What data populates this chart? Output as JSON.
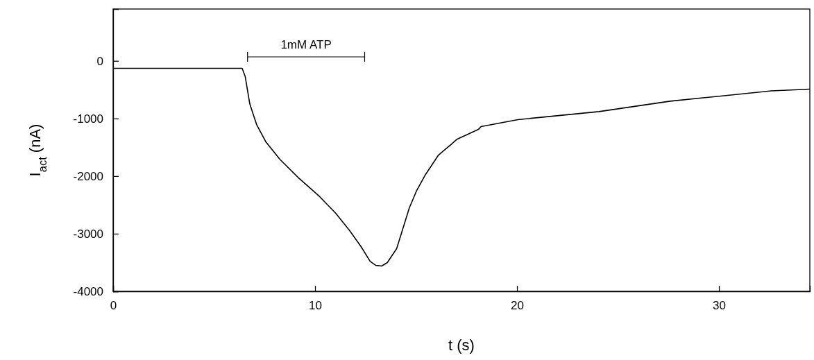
{
  "chart_data": {
    "type": "line",
    "xlabel": "t (s)",
    "ylabel": "I$_{act}$ (nA)",
    "xlim": [
      0,
      34.5
    ],
    "xticks": [
      0,
      10,
      20,
      30
    ],
    "ylim": [
      -4000,
      900
    ],
    "yticks": [
      -4000,
      -3000,
      -2000,
      -1000,
      0
    ],
    "annotations": [
      "1mM ATP"
    ],
    "series": [
      {
        "color": "#000000",
        "x": [
          0,
          6.39,
          6.54,
          6.77,
          7.11,
          7.57,
          8.26,
          9.18,
          10.21,
          11.01,
          11.7,
          12.27,
          12.73,
          13.01,
          13.3,
          13.58,
          14.04,
          14.67,
          15.02,
          15.44,
          16.1,
          16.74,
          17.03,
          18.09,
          18.22,
          20.04,
          24.06,
          27.58,
          30.09,
          32.6,
          34.5
        ],
        "values": [
          -130,
          -130,
          -270,
          -750,
          -1110,
          -1410,
          -1710,
          -2030,
          -2350,
          -2640,
          -2940,
          -3220,
          -3480,
          -3550,
          -3560,
          -3500,
          -3260,
          -2550,
          -2260,
          -1990,
          -1640,
          -1450,
          -1360,
          -1190,
          -1140,
          -1020,
          -880,
          -700,
          -610,
          -520,
          -490
        ]
      }
    ]
  }
}
